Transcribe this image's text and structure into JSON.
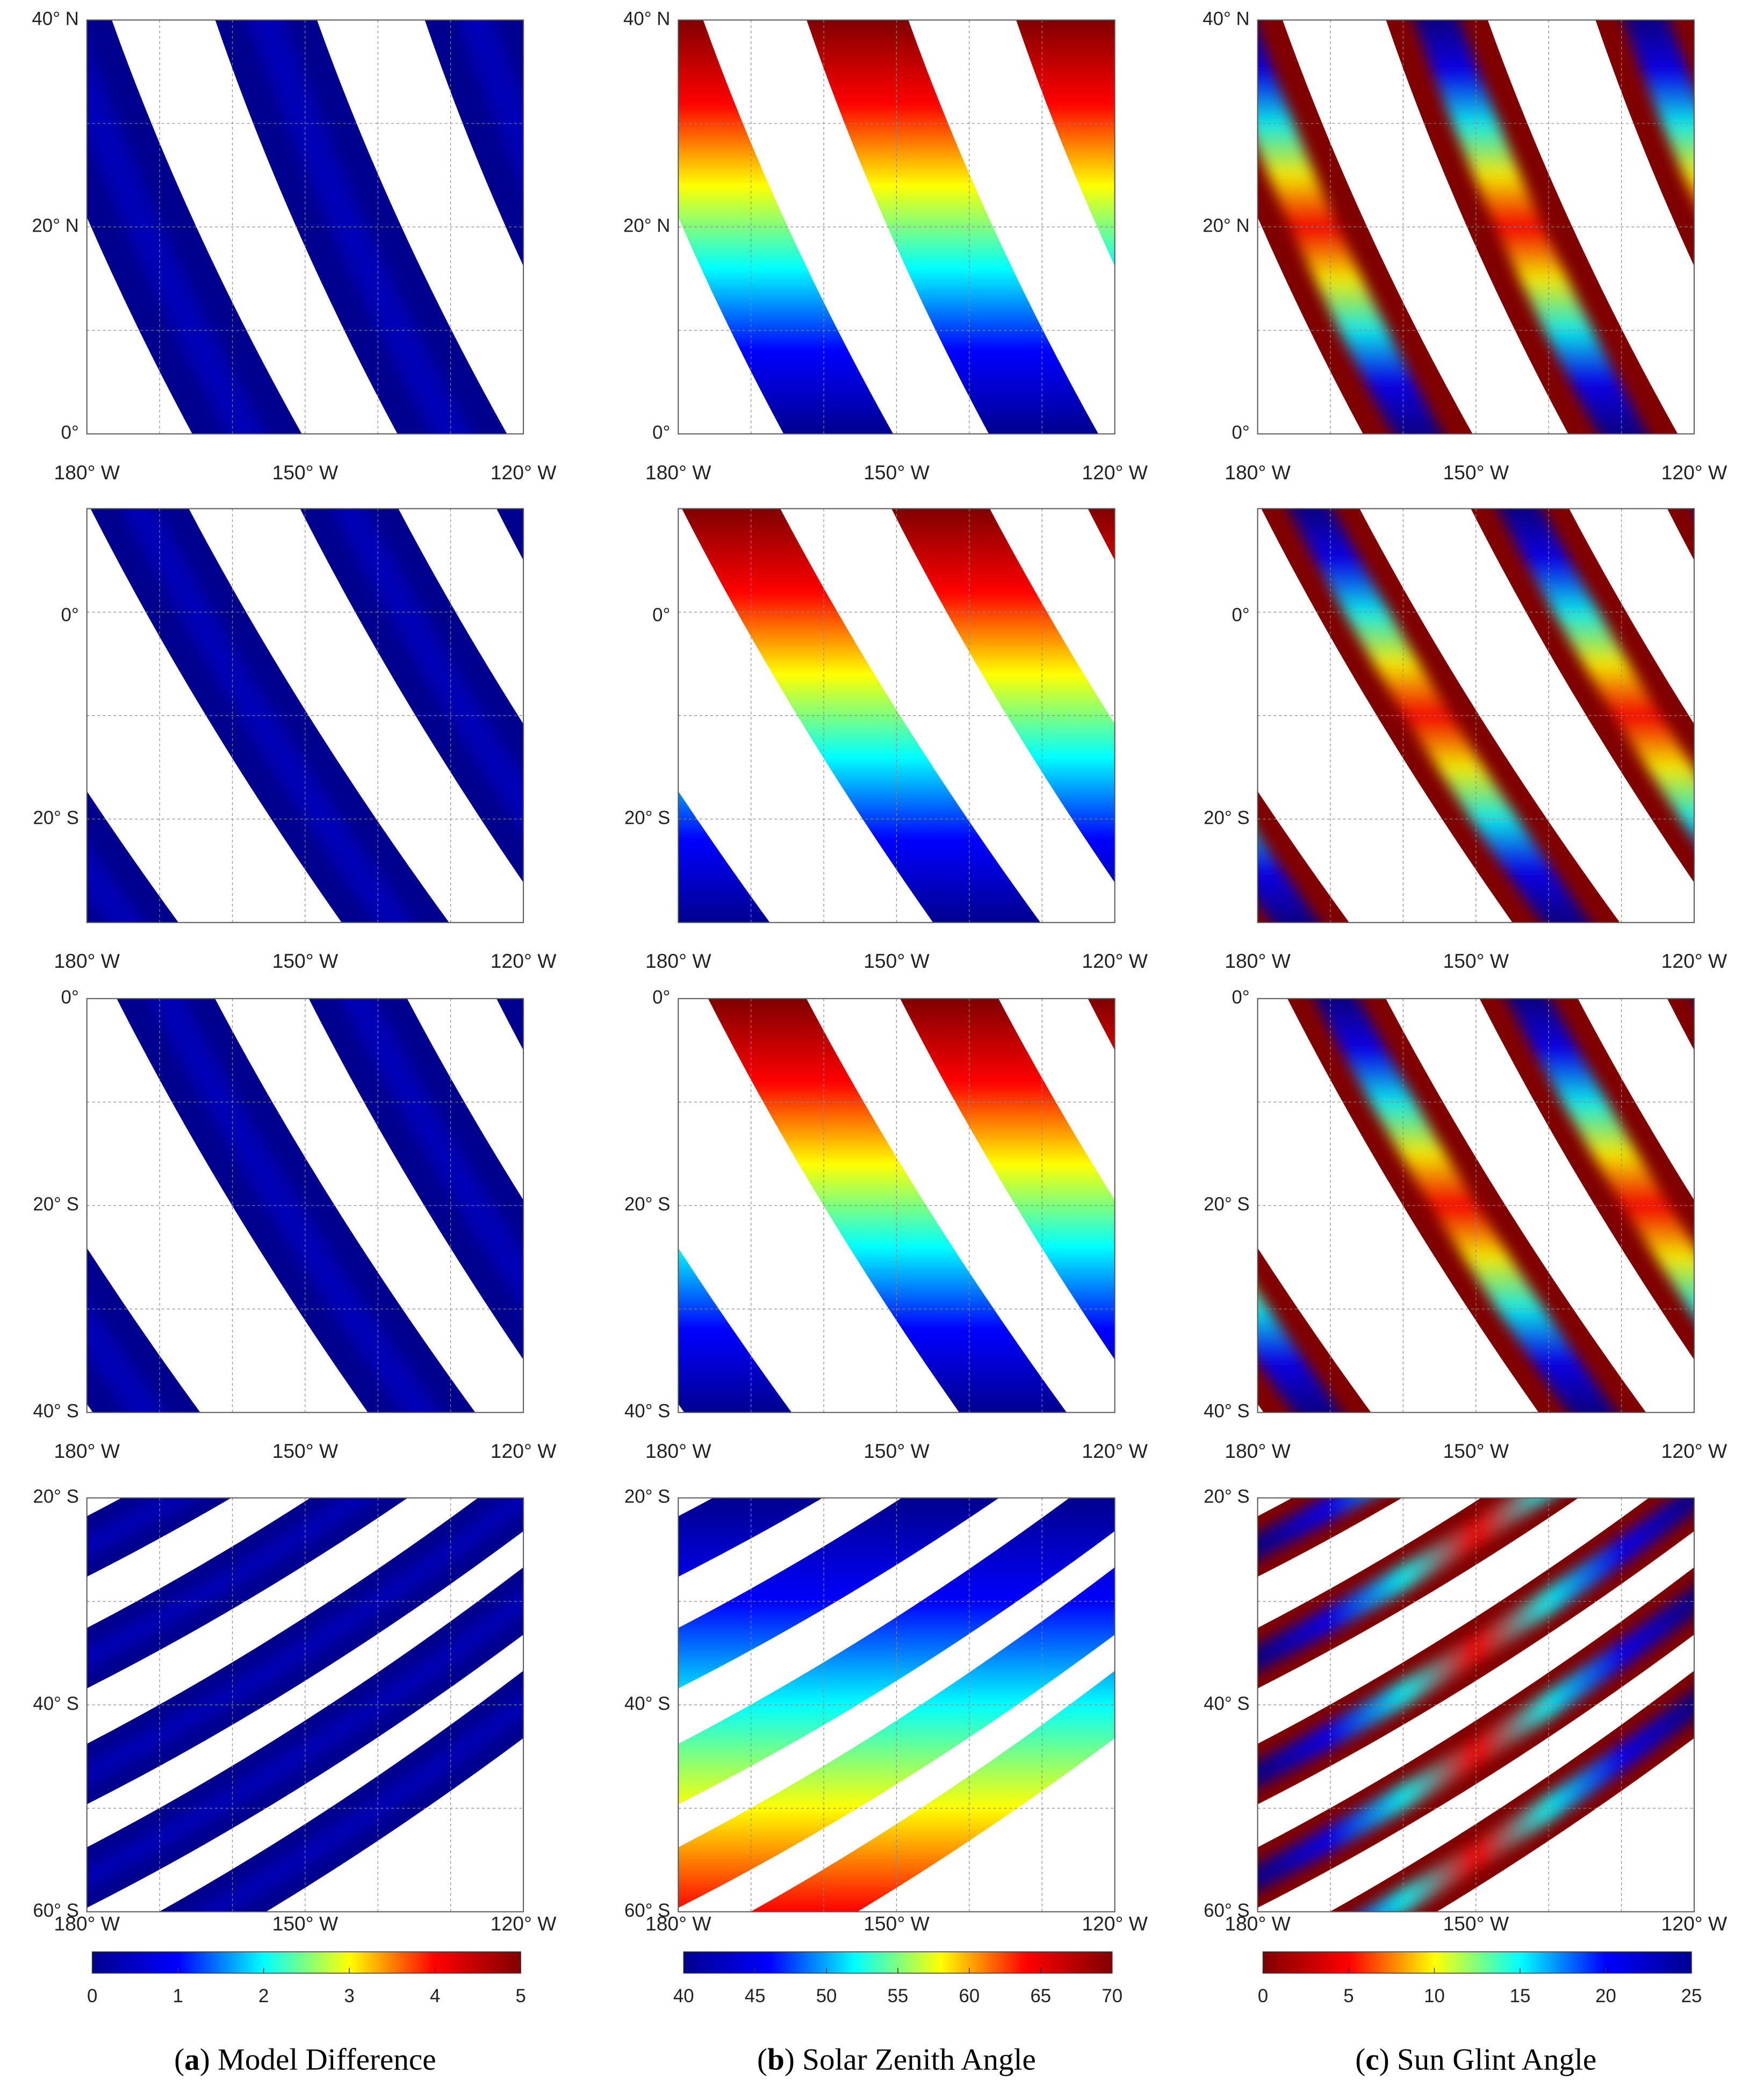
{
  "rows": [
    {
      "y_labels": [
        "40° N",
        "20° N",
        "0°"
      ],
      "x_labels": [
        "180° W",
        "150° W",
        "120° W"
      ]
    },
    {
      "y_labels": [
        "0°",
        "20° S"
      ],
      "x_labels": [
        "180° W",
        "150° W",
        "120° W"
      ]
    },
    {
      "y_labels": [
        "0°",
        "20° S",
        "40° S"
      ],
      "x_labels": [
        "180° W",
        "150° W",
        "120° W"
      ]
    },
    {
      "y_labels": [
        "20° S",
        "40° S",
        "60° S"
      ],
      "x_labels": [
        "180° W",
        "150° W",
        "120° W"
      ]
    }
  ],
  "columns": [
    {
      "caption": [
        "(",
        "a",
        ") Model Difference"
      ],
      "colorbar": {
        "lim": [
          0,
          5
        ],
        "ticks": [
          0,
          1,
          2,
          3,
          4,
          5
        ],
        "colormap": [
          "#00008f",
          "#0000ff",
          "#00ffff",
          "#ffff00",
          "#ff0000",
          "#800000"
        ]
      }
    },
    {
      "caption": [
        "(",
        "b",
        ") Solar Zenith Angle"
      ],
      "colorbar": {
        "lim": [
          40,
          70
        ],
        "ticks": [
          40,
          45,
          50,
          55,
          60,
          65,
          70
        ],
        "colormap": [
          "#00008f",
          "#0000ff",
          "#00ffff",
          "#ffff00",
          "#ff0000",
          "#800000"
        ]
      }
    },
    {
      "caption": [
        "(",
        "c",
        ") Sun Glint Angle"
      ],
      "colorbar": {
        "lim": [
          0,
          25
        ],
        "ticks": [
          0,
          5,
          10,
          15,
          20,
          25
        ],
        "colormap": [
          "#800000",
          "#ff0000",
          "#ffff00",
          "#00ffff",
          "#0000ff",
          "#00008f"
        ]
      }
    }
  ]
}
